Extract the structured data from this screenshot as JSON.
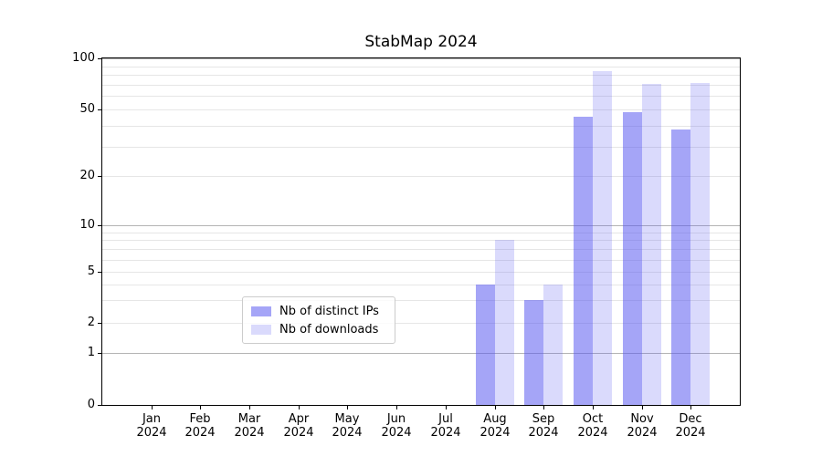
{
  "chart_data": {
    "type": "bar",
    "title": "StabMap 2024",
    "categories": [
      "Jan 2024",
      "Feb 2024",
      "Mar 2024",
      "Apr 2024",
      "May 2024",
      "Jun 2024",
      "Jul 2024",
      "Aug 2024",
      "Sep 2024",
      "Oct 2024",
      "Nov 2024",
      "Dec 2024"
    ],
    "series": [
      {
        "name": "Nb of distinct IPs",
        "color": "#5555f0",
        "alpha": 0.53,
        "values": [
          0,
          0,
          0,
          0,
          0,
          0,
          0,
          4,
          3,
          45,
          48,
          38
        ]
      },
      {
        "name": "Nb of downloads",
        "color": "#5555f0",
        "alpha": 0.22,
        "values": [
          0,
          0,
          0,
          0,
          0,
          0,
          0,
          8,
          4,
          84,
          71,
          72
        ]
      }
    ],
    "xlabel": "",
    "ylabel": "",
    "ylim": [
      0,
      100
    ],
    "y_axis": {
      "scale": "log-like",
      "tick_labels": [
        0,
        1,
        2,
        5,
        10,
        20,
        50,
        100
      ],
      "major_gridlines": [
        1,
        10,
        100
      ],
      "minor_gridlines": [
        2,
        3,
        4,
        5,
        6,
        7,
        8,
        9,
        20,
        30,
        40,
        50,
        60,
        70,
        80,
        90
      ]
    },
    "grid": true,
    "legend_position": "lower center"
  },
  "colors": {
    "background": "#ffffff",
    "axis": "#000000",
    "major_grid": "#b4b4b4",
    "minor_grid": "#e6e6e6",
    "bar_dark_rendered": "#a6a6f7",
    "bar_light_rendered": "#d9d9fa"
  }
}
